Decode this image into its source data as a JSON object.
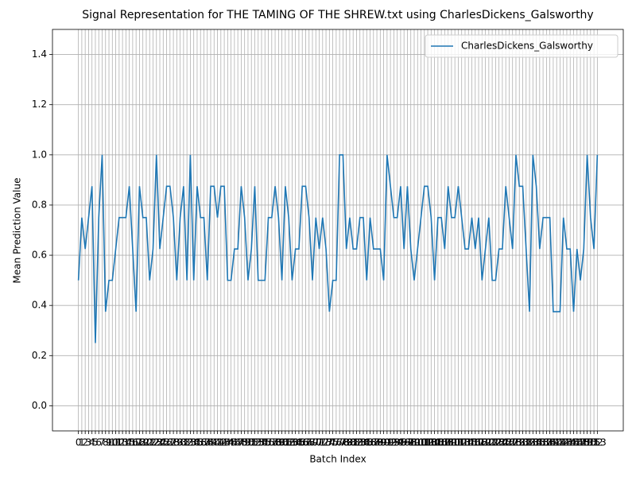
{
  "chart_data": {
    "type": "line",
    "title": "Signal Representation for THE TAMING OF THE SHREW.txt using CharlesDickens_Galsworthy",
    "x_label": "Batch Index",
    "y_label": "Mean Prediction Value",
    "x": [
      0,
      1,
      2,
      3,
      4,
      5,
      6,
      7,
      8,
      9,
      10,
      11,
      12,
      13,
      14,
      15,
      16,
      17,
      18,
      19,
      20,
      21,
      22,
      23,
      24,
      25,
      26,
      27,
      28,
      29,
      30,
      31,
      32,
      33,
      34,
      35,
      36,
      37,
      38,
      39,
      40,
      41,
      42,
      43,
      44,
      45,
      46,
      47,
      48,
      49,
      50,
      51,
      52,
      53,
      54,
      55,
      56,
      57,
      58,
      59,
      60,
      61,
      62,
      63,
      64,
      65,
      66,
      67,
      68,
      69,
      70,
      71,
      72,
      73,
      74,
      75,
      76,
      77,
      78,
      79,
      80,
      81,
      82,
      83,
      84,
      85,
      86,
      87,
      88,
      89,
      90,
      91,
      92,
      93,
      94,
      95,
      96,
      97,
      98,
      99,
      100,
      101,
      102,
      103,
      104,
      105,
      106,
      107,
      108,
      109,
      110,
      111,
      112,
      113,
      114,
      115,
      116,
      117,
      118,
      119,
      120,
      121,
      122,
      123,
      124,
      125,
      126,
      127,
      128,
      129,
      130,
      131,
      132,
      133,
      134,
      135,
      136,
      137,
      138,
      139,
      140,
      141,
      142,
      143,
      144,
      145,
      146,
      147,
      148,
      149,
      150,
      151,
      152,
      153
    ],
    "series": [
      {
        "name": "CharlesDickens_Galsworthy",
        "color": "#1f77b4",
        "values": [
          0.5,
          0.75,
          0.625,
          0.75,
          0.875,
          0.25,
          0.75,
          1.0,
          0.375,
          0.5,
          0.5,
          0.625,
          0.75,
          0.75,
          0.75,
          0.875,
          0.625,
          0.375,
          0.875,
          0.75,
          0.75,
          0.5,
          0.625,
          1.0,
          0.625,
          0.75,
          0.875,
          0.875,
          0.75,
          0.5,
          0.75,
          0.875,
          0.5,
          1.0,
          0.5,
          0.875,
          0.75,
          0.75,
          0.5,
          0.875,
          0.875,
          0.75,
          0.875,
          0.875,
          0.5,
          0.5,
          0.625,
          0.625,
          0.875,
          0.75,
          0.5,
          0.625,
          0.875,
          0.5,
          0.5,
          0.5,
          0.75,
          0.75,
          0.875,
          0.75,
          0.5,
          0.875,
          0.75,
          0.5,
          0.625,
          0.625,
          0.875,
          0.875,
          0.75,
          0.5,
          0.75,
          0.625,
          0.75,
          0.625,
          0.375,
          0.5,
          0.5,
          1.0,
          1.0,
          0.625,
          0.75,
          0.625,
          0.625,
          0.75,
          0.75,
          0.5,
          0.75,
          0.625,
          0.625,
          0.625,
          0.5,
          1.0,
          0.875,
          0.75,
          0.75,
          0.875,
          0.625,
          0.875,
          0.625,
          0.5,
          0.625,
          0.75,
          0.875,
          0.875,
          0.75,
          0.5,
          0.75,
          0.75,
          0.625,
          0.875,
          0.75,
          0.75,
          0.875,
          0.75,
          0.625,
          0.625,
          0.75,
          0.625,
          0.75,
          0.5,
          0.625,
          0.75,
          0.5,
          0.5,
          0.625,
          0.625,
          0.875,
          0.75,
          0.625,
          1.0,
          0.875,
          0.875,
          0.625,
          0.375,
          1.0,
          0.875,
          0.625,
          0.75,
          0.75,
          0.75,
          0.375,
          0.375,
          0.375,
          0.75,
          0.625,
          0.625,
          0.375,
          0.625,
          0.5,
          0.625,
          1.0,
          0.75,
          0.625,
          1.0
        ]
      }
    ],
    "xlim": [
      -7.65,
      160.65
    ],
    "xticks": [
      0,
      1,
      2,
      3,
      4,
      5,
      6,
      7,
      8,
      9,
      10,
      11,
      12,
      13,
      14,
      15,
      16,
      17,
      18,
      19,
      20,
      21,
      22,
      23,
      24,
      25,
      26,
      27,
      28,
      29,
      30,
      31,
      32,
      33,
      34,
      35,
      36,
      37,
      38,
      39,
      40,
      41,
      42,
      43,
      44,
      45,
      46,
      47,
      48,
      49,
      50,
      51,
      52,
      53,
      54,
      55,
      56,
      57,
      58,
      59,
      60,
      61,
      62,
      63,
      64,
      65,
      66,
      67,
      68,
      69,
      70,
      71,
      72,
      73,
      74,
      75,
      76,
      77,
      78,
      79,
      80,
      81,
      82,
      83,
      84,
      85,
      86,
      87,
      88,
      89,
      90,
      91,
      92,
      93,
      94,
      95,
      96,
      97,
      98,
      99,
      100,
      101,
      102,
      103,
      104,
      105,
      106,
      107,
      108,
      109,
      110,
      111,
      112,
      113,
      114,
      115,
      116,
      117,
      118,
      119,
      120,
      121,
      122,
      123,
      124,
      125,
      126,
      127,
      128,
      129,
      130,
      131,
      132,
      133,
      134,
      135,
      136,
      137,
      138,
      139,
      140,
      141,
      142,
      143,
      144,
      145,
      146,
      147,
      148,
      149,
      150,
      151,
      152,
      153
    ],
    "ylim": [
      -0.1,
      1.5
    ],
    "yticks": [
      {
        "value": 0,
        "label": "0.0"
      },
      {
        "value": 0.2,
        "label": "0.2"
      },
      {
        "value": 0.4,
        "label": "0.4"
      },
      {
        "value": 0.6,
        "label": "0.6"
      },
      {
        "value": 0.8,
        "label": "0.8"
      },
      {
        "value": 1.0,
        "label": "1.0"
      },
      {
        "value": 1.2,
        "label": "1.2"
      },
      {
        "value": 1.4,
        "label": "1.4"
      }
    ],
    "grid": true,
    "legend": "upper right"
  }
}
